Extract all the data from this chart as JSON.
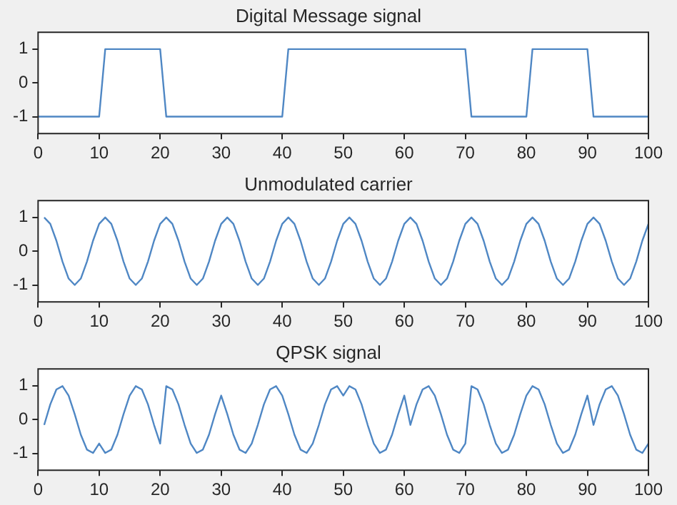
{
  "chart_data": [
    {
      "type": "line",
      "title": "Digital Message signal",
      "x": [
        0,
        10,
        11,
        20,
        21,
        40,
        41,
        70,
        71,
        80,
        81,
        90,
        91,
        100
      ],
      "series": [
        {
          "color": "#4f87c4",
          "values": [
            -1,
            -1,
            1,
            1,
            -1,
            -1,
            1,
            1,
            -1,
            -1,
            1,
            1,
            -1,
            -1
          ]
        }
      ],
      "xlim": [
        0,
        100
      ],
      "xticks": [
        0,
        10,
        20,
        30,
        40,
        50,
        60,
        70,
        80,
        90,
        100
      ],
      "ylim": [
        -1.5,
        1.5
      ],
      "yticks": [
        -1,
        0,
        1
      ]
    },
    {
      "type": "line",
      "title": "Unmodulated carrier",
      "x": [
        1,
        2,
        3,
        4,
        5,
        6,
        7,
        8,
        9,
        10,
        11,
        12,
        13,
        14,
        15,
        16,
        17,
        18,
        19,
        20,
        21,
        22,
        23,
        24,
        25,
        26,
        27,
        28,
        29,
        30,
        31,
        32,
        33,
        34,
        35,
        36,
        37,
        38,
        39,
        40,
        41,
        42,
        43,
        44,
        45,
        46,
        47,
        48,
        49,
        50,
        51,
        52,
        53,
        54,
        55,
        56,
        57,
        58,
        59,
        60,
        61,
        62,
        63,
        64,
        65,
        66,
        67,
        68,
        69,
        70,
        71,
        72,
        73,
        74,
        75,
        76,
        77,
        78,
        79,
        80,
        81,
        82,
        83,
        84,
        85,
        86,
        87,
        88,
        89,
        90,
        91,
        92,
        93,
        94,
        95,
        96,
        97,
        98,
        99,
        100
      ],
      "series": [
        {
          "color": "#4f87c4",
          "values": [
            1,
            0.81,
            0.31,
            -0.31,
            -0.81,
            -1,
            -0.81,
            -0.31,
            0.31,
            0.81,
            1,
            0.81,
            0.31,
            -0.31,
            -0.81,
            -1,
            -0.81,
            -0.31,
            0.31,
            0.81,
            1,
            0.81,
            0.31,
            -0.31,
            -0.81,
            -1,
            -0.81,
            -0.31,
            0.31,
            0.81,
            1,
            0.81,
            0.31,
            -0.31,
            -0.81,
            -1,
            -0.81,
            -0.31,
            0.31,
            0.81,
            1,
            0.81,
            0.31,
            -0.31,
            -0.81,
            -1,
            -0.81,
            -0.31,
            0.31,
            0.81,
            1,
            0.81,
            0.31,
            -0.31,
            -0.81,
            -1,
            -0.81,
            -0.31,
            0.31,
            0.81,
            1,
            0.81,
            0.31,
            -0.31,
            -0.81,
            -1,
            -0.81,
            -0.31,
            0.31,
            0.81,
            1,
            0.81,
            0.31,
            -0.31,
            -0.81,
            -1,
            -0.81,
            -0.31,
            0.31,
            0.81,
            1,
            0.81,
            0.31,
            -0.31,
            -0.81,
            -1,
            -0.81,
            -0.31,
            0.31,
            0.81,
            1,
            0.81,
            0.31,
            -0.31,
            -0.81,
            -1,
            -0.81,
            -0.31,
            0.31,
            0.81
          ]
        }
      ],
      "xlim": [
        0,
        100
      ],
      "xticks": [
        0,
        10,
        20,
        30,
        40,
        50,
        60,
        70,
        80,
        90,
        100
      ],
      "ylim": [
        -1.5,
        1.5
      ],
      "yticks": [
        -1,
        0,
        1
      ]
    },
    {
      "type": "line",
      "title": "QPSK signal",
      "x": [
        1,
        2,
        3,
        4,
        5,
        6,
        7,
        8,
        9,
        10,
        11,
        12,
        13,
        14,
        15,
        16,
        17,
        18,
        19,
        20,
        21,
        22,
        23,
        24,
        25,
        26,
        27,
        28,
        29,
        30,
        31,
        32,
        33,
        34,
        35,
        36,
        37,
        38,
        39,
        40,
        41,
        42,
        43,
        44,
        45,
        46,
        47,
        48,
        49,
        50,
        51,
        52,
        53,
        54,
        55,
        56,
        57,
        58,
        59,
        60,
        61,
        62,
        63,
        64,
        65,
        66,
        67,
        68,
        69,
        70,
        71,
        72,
        73,
        74,
        75,
        76,
        77,
        78,
        79,
        80,
        81,
        82,
        83,
        84,
        85,
        86,
        87,
        88,
        89,
        90,
        91,
        92,
        93,
        94,
        95,
        96,
        97,
        98,
        99,
        100
      ],
      "series": [
        {
          "color": "#4f87c4",
          "values": [
            -0.16,
            0.45,
            0.89,
            0.99,
            0.71,
            0.16,
            -0.45,
            -0.89,
            -0.99,
            -0.71,
            -0.99,
            -0.89,
            -0.45,
            0.16,
            0.71,
            0.99,
            0.89,
            0.45,
            -0.16,
            -0.71,
            0.99,
            0.89,
            0.45,
            -0.16,
            -0.71,
            -0.99,
            -0.89,
            -0.45,
            0.16,
            0.71,
            0.16,
            -0.45,
            -0.89,
            -0.99,
            -0.71,
            -0.16,
            0.45,
            0.89,
            0.99,
            0.71,
            0.16,
            -0.45,
            -0.89,
            -0.99,
            -0.71,
            -0.16,
            0.45,
            0.89,
            0.99,
            0.71,
            0.99,
            0.89,
            0.45,
            -0.16,
            -0.71,
            -0.99,
            -0.89,
            -0.45,
            0.16,
            0.71,
            -0.16,
            0.45,
            0.89,
            0.99,
            0.71,
            0.16,
            -0.45,
            -0.89,
            -0.99,
            -0.71,
            0.99,
            0.89,
            0.45,
            -0.16,
            -0.71,
            -0.99,
            -0.89,
            -0.45,
            0.16,
            0.71,
            0.99,
            0.89,
            0.45,
            -0.16,
            -0.71,
            -0.99,
            -0.89,
            -0.45,
            0.16,
            0.71,
            -0.16,
            0.45,
            0.89,
            0.99,
            0.71,
            0.16,
            -0.45,
            -0.89,
            -0.99,
            -0.71
          ]
        }
      ],
      "xlim": [
        0,
        100
      ],
      "xticks": [
        0,
        10,
        20,
        30,
        40,
        50,
        60,
        70,
        80,
        90,
        100
      ],
      "ylim": [
        -1.5,
        1.5
      ],
      "yticks": [
        -1,
        0,
        1
      ]
    }
  ]
}
